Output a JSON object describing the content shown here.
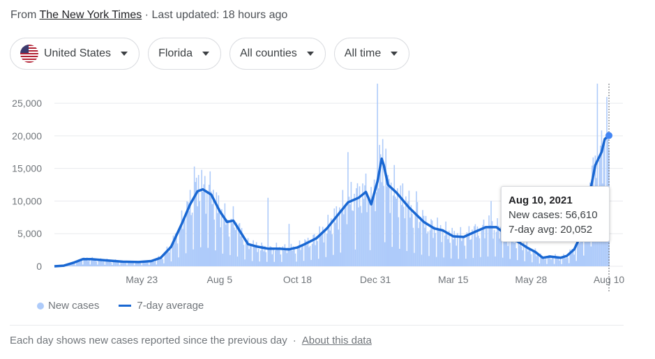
{
  "source": {
    "prefix": "From",
    "publisher": "The New York Times",
    "updated": "· Last updated: 18 hours ago"
  },
  "filters": [
    {
      "label": "United States",
      "icon": "us-flag-icon"
    },
    {
      "label": "Florida"
    },
    {
      "label": "All counties"
    },
    {
      "label": "All time"
    }
  ],
  "tooltip": {
    "date": "Aug 10, 2021",
    "new_cases": "New cases: 56,610",
    "avg": "7-day avg: 20,052"
  },
  "legend": {
    "bars": "New cases",
    "line": "7-day average"
  },
  "footer": {
    "note": "Each day shows new cases reported since the previous day",
    "sep": "·",
    "link": "About this data"
  },
  "colors": {
    "bar": "#aecbfa",
    "line": "#1967d2",
    "grid": "#e8eaed"
  },
  "chart_data": {
    "type": "bar+line",
    "ylim": [
      0,
      28000
    ],
    "yticks": [
      0,
      5000,
      10000,
      15000,
      20000,
      25000
    ],
    "ytick_labels": [
      "0",
      "5,000",
      "10,000",
      "15,000",
      "20,000",
      "25,000"
    ],
    "xlim": [
      "2020-03-01",
      "2021-08-10"
    ],
    "xticks": [
      {
        "date": "2020-05-23",
        "label": "May 23"
      },
      {
        "date": "2020-08-05",
        "label": "Aug 5"
      },
      {
        "date": "2020-10-18",
        "label": "Oct 18"
      },
      {
        "date": "2020-12-31",
        "label": "Dec 31"
      },
      {
        "date": "2021-03-15",
        "label": "Mar 15"
      },
      {
        "date": "2021-05-28",
        "label": "May 28"
      },
      {
        "date": "2021-08-10",
        "label": "Aug 10"
      }
    ],
    "series": [
      {
        "name": "7-day average",
        "points": [
          [
            "2020-03-01",
            0
          ],
          [
            "2020-03-10",
            100
          ],
          [
            "2020-03-20",
            600
          ],
          [
            "2020-03-28",
            1100
          ],
          [
            "2020-04-05",
            1100
          ],
          [
            "2020-04-20",
            900
          ],
          [
            "2020-05-05",
            700
          ],
          [
            "2020-05-20",
            650
          ],
          [
            "2020-06-01",
            800
          ],
          [
            "2020-06-10",
            1300
          ],
          [
            "2020-06-20",
            3000
          ],
          [
            "2020-06-30",
            6500
          ],
          [
            "2020-07-08",
            9500
          ],
          [
            "2020-07-15",
            11500
          ],
          [
            "2020-07-20",
            11800
          ],
          [
            "2020-07-28",
            11000
          ],
          [
            "2020-08-05",
            8500
          ],
          [
            "2020-08-12",
            6800
          ],
          [
            "2020-08-18",
            7000
          ],
          [
            "2020-08-25",
            5200
          ],
          [
            "2020-09-01",
            3400
          ],
          [
            "2020-09-10",
            3000
          ],
          [
            "2020-09-20",
            2700
          ],
          [
            "2020-10-01",
            2700
          ],
          [
            "2020-10-10",
            2600
          ],
          [
            "2020-10-18",
            2900
          ],
          [
            "2020-10-25",
            3400
          ],
          [
            "2020-11-05",
            4300
          ],
          [
            "2020-11-15",
            5800
          ],
          [
            "2020-11-25",
            7800
          ],
          [
            "2020-12-05",
            9800
          ],
          [
            "2020-12-15",
            10500
          ],
          [
            "2020-12-22",
            11400
          ],
          [
            "2020-12-27",
            9500
          ],
          [
            "2021-01-02",
            13000
          ],
          [
            "2021-01-06",
            16500
          ],
          [
            "2021-01-08",
            15500
          ],
          [
            "2021-01-12",
            12500
          ],
          [
            "2021-01-20",
            11300
          ],
          [
            "2021-02-01",
            9000
          ],
          [
            "2021-02-15",
            6800
          ],
          [
            "2021-02-25",
            5800
          ],
          [
            "2021-03-05",
            5500
          ],
          [
            "2021-03-15",
            4600
          ],
          [
            "2021-03-25",
            4500
          ],
          [
            "2021-04-05",
            5300
          ],
          [
            "2021-04-15",
            6000
          ],
          [
            "2021-04-25",
            6000
          ],
          [
            "2021-05-05",
            4800
          ],
          [
            "2021-05-15",
            3800
          ],
          [
            "2021-05-25",
            2800
          ],
          [
            "2021-06-01",
            2200
          ],
          [
            "2021-06-08",
            1300
          ],
          [
            "2021-06-15",
            1500
          ],
          [
            "2021-06-25",
            1300
          ],
          [
            "2021-07-01",
            1600
          ],
          [
            "2021-07-08",
            2600
          ],
          [
            "2021-07-15",
            5000
          ],
          [
            "2021-07-22",
            10500
          ],
          [
            "2021-07-28",
            15500
          ],
          [
            "2021-08-03",
            17500
          ],
          [
            "2021-08-06",
            19500
          ],
          [
            "2021-08-10",
            20052
          ]
        ]
      },
      {
        "name": "New cases",
        "spikes": [
          [
            "2020-07-12",
            15300
          ],
          [
            "2020-07-16",
            14000
          ],
          [
            "2020-07-26",
            12500
          ],
          [
            "2020-09-20",
            10500
          ],
          [
            "2020-10-10",
            6500
          ],
          [
            "2020-12-05",
            17500
          ],
          [
            "2020-12-19",
            12700
          ],
          [
            "2021-01-02",
            28000
          ],
          [
            "2021-01-07",
            19500
          ],
          [
            "2021-02-08",
            11500
          ],
          [
            "2021-04-20",
            10000
          ],
          [
            "2021-07-30",
            28000
          ]
        ]
      }
    ]
  }
}
